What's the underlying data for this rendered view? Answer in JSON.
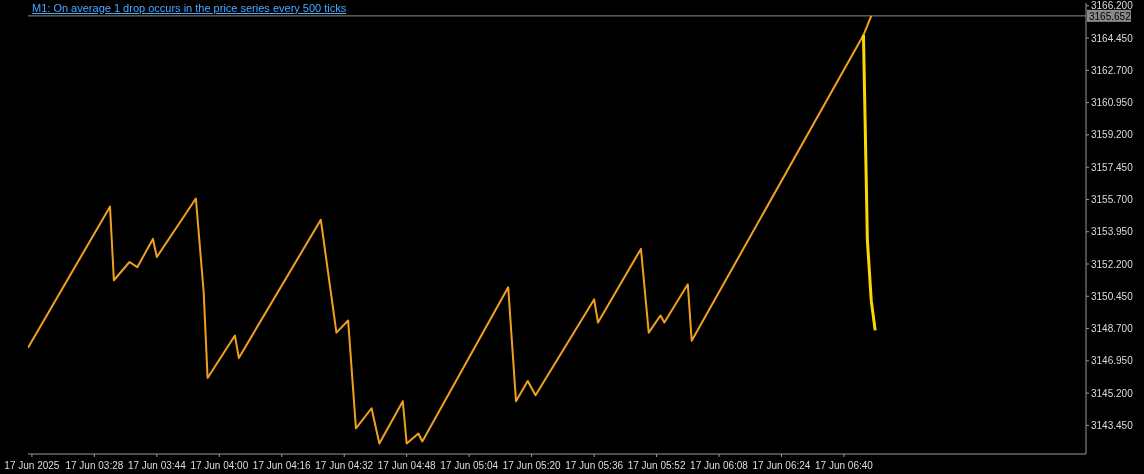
{
  "chart_data": {
    "type": "line",
    "title": "M1:  On average 1 drop occurs in the price series every 500 ticks",
    "series": [
      {
        "color": "#f0a020",
        "x": [
          "2025-06-17T03:11",
          "2025-06-17T03:32",
          "2025-06-17T03:33",
          "2025-06-17T03:37",
          "2025-06-17T03:39",
          "2025-06-17T03:43",
          "2025-06-17T03:44",
          "2025-06-17T03:54",
          "2025-06-17T03:56",
          "2025-06-17T03:57",
          "2025-06-17T04:04",
          "2025-06-17T04:05",
          "2025-06-17T04:26",
          "2025-06-17T04:30",
          "2025-06-17T04:33",
          "2025-06-17T04:35",
          "2025-06-17T04:39",
          "2025-06-17T04:41",
          "2025-06-17T04:47",
          "2025-06-17T04:48",
          "2025-06-17T04:51",
          "2025-06-17T04:52",
          "2025-06-17T05:14",
          "2025-06-17T05:16",
          "2025-06-17T05:19",
          "2025-06-17T05:21",
          "2025-06-17T05:36",
          "2025-06-17T05:37",
          "2025-06-17T05:48",
          "2025-06-17T05:50",
          "2025-06-17T05:53",
          "2025-06-17T05:54",
          "2025-06-17T06:00",
          "2025-06-17T06:01",
          "2025-06-17T06:45",
          "2025-06-17T06:47"
        ],
        "values": [
          3147.66,
          3155.31,
          3151.32,
          3152.31,
          3152.03,
          3153.56,
          3152.58,
          3155.75,
          3150.67,
          3146.02,
          3148.32,
          3147.11,
          3154.6,
          3148.48,
          3149.14,
          3143.29,
          3144.38,
          3142.47,
          3144.76,
          3142.47,
          3143.01,
          3142.58,
          3150.94,
          3144.76,
          3145.86,
          3145.09,
          3150.28,
          3149.03,
          3153.02,
          3148.48,
          3149.41,
          3149.03,
          3151.1,
          3148.04,
          3164.61,
          3165.65
        ]
      },
      {
        "color": "#ffd700",
        "x": [
          "2025-06-17T06:45",
          "2025-06-17T06:46",
          "2025-06-17T06:47",
          "2025-06-17T06:48"
        ],
        "values": [
          3164.61,
          3153.5,
          3150.2,
          3148.6
        ]
      }
    ],
    "xlim": [
      "2025-06-17T03:11",
      "2025-06-17T07:42"
    ],
    "xticks": [
      {
        "value": "2025-06-17T03:12",
        "label": "17 Jun 2025"
      },
      {
        "value": "2025-06-17T03:28",
        "label": "17 Jun 03:28"
      },
      {
        "value": "2025-06-17T03:44",
        "label": "17 Jun 03:44"
      },
      {
        "value": "2025-06-17T04:00",
        "label": "17 Jun 04:00"
      },
      {
        "value": "2025-06-17T04:16",
        "label": "17 Jun 04:16"
      },
      {
        "value": "2025-06-17T04:32",
        "label": "17 Jun 04:32"
      },
      {
        "value": "2025-06-17T04:48",
        "label": "17 Jun 04:48"
      },
      {
        "value": "2025-06-17T05:04",
        "label": "17 Jun 05:04"
      },
      {
        "value": "2025-06-17T05:20",
        "label": "17 Jun 05:20"
      },
      {
        "value": "2025-06-17T05:36",
        "label": "17 Jun 05:36"
      },
      {
        "value": "2025-06-17T05:52",
        "label": "17 Jun 05:52"
      },
      {
        "value": "2025-06-17T06:08",
        "label": "17 Jun 06:08"
      },
      {
        "value": "2025-06-17T06:24",
        "label": "17 Jun 06:24"
      },
      {
        "value": "2025-06-17T06:40",
        "label": "17 Jun 06:40"
      }
    ],
    "ylim": [
      3141.9,
      3166.35
    ],
    "yticks": [
      {
        "value": 3143.45,
        "label": "3143.450"
      },
      {
        "value": 3145.2,
        "label": "3145.200"
      },
      {
        "value": 3146.95,
        "label": "3146.950"
      },
      {
        "value": 3148.7,
        "label": "3148.700"
      },
      {
        "value": 3150.45,
        "label": "3150.450"
      },
      {
        "value": 3152.2,
        "label": "3152.200"
      },
      {
        "value": 3153.95,
        "label": "3153.950"
      },
      {
        "value": 3155.7,
        "label": "3155.700"
      },
      {
        "value": 3157.45,
        "label": "3157.450"
      },
      {
        "value": 3159.2,
        "label": "3159.200"
      },
      {
        "value": 3160.95,
        "label": "3160.950"
      },
      {
        "value": 3162.7,
        "label": "3162.700"
      },
      {
        "value": 3164.45,
        "label": "3164.450"
      },
      {
        "value": 3166.2,
        "label": "3166.200"
      }
    ],
    "ref_lines": [
      {
        "axis": "y",
        "value": 3165.652,
        "label": "3165.652",
        "color": "#8a8a8a"
      }
    ],
    "grid": false,
    "legend": false,
    "marker": "none",
    "line_style": "solid"
  }
}
